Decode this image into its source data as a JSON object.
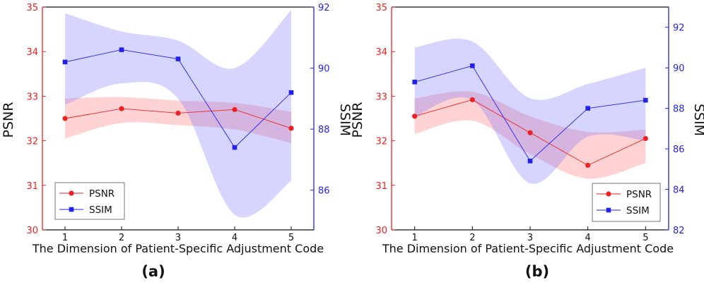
{
  "chart_data": [
    {
      "type": "line",
      "panel_label": "(a)",
      "xlabel": "The Dimension of Patient-Specific Adjustment Code",
      "ylabel_left": "PSNR",
      "ylabel_right": "SSIM",
      "x": [
        1,
        2,
        3,
        4,
        5
      ],
      "xticks": [
        "1",
        "2",
        "3",
        "4",
        "5"
      ],
      "xlim": [
        0.6,
        5.4
      ],
      "ylim_left": [
        30,
        35
      ],
      "yticks_left": [
        "30",
        "31",
        "32",
        "33",
        "34",
        "35"
      ],
      "ylim_right": [
        84.7,
        92
      ],
      "yticks_right": [
        "86",
        "88",
        "90",
        "92"
      ],
      "series": [
        {
          "name": "PSNR",
          "axis": "left",
          "color": "#ff0000",
          "marker": "circle",
          "values": [
            32.5,
            32.72,
            32.62,
            32.7,
            32.28
          ],
          "band_upper": [
            32.95,
            32.98,
            32.9,
            32.85,
            32.65
          ],
          "band_lower": [
            32.05,
            32.4,
            32.35,
            32.25,
            31.95
          ]
        },
        {
          "name": "SSIM",
          "axis": "right",
          "color": "#2222ff",
          "marker": "square",
          "values": [
            90.2,
            90.6,
            90.3,
            87.4,
            89.2
          ],
          "band_upper": [
            91.8,
            91.2,
            90.9,
            90.0,
            91.9
          ],
          "band_lower": [
            88.8,
            89.5,
            89.0,
            85.2,
            86.3
          ]
        }
      ],
      "legend": [
        "PSNR",
        "SSIM"
      ],
      "legend_position": "bottom-left"
    },
    {
      "type": "line",
      "panel_label": "(b)",
      "xlabel": "The Dimension of Patient-Specific Adjustment Code",
      "ylabel_left": "PSNR",
      "ylabel_right": "SSIM",
      "x": [
        1,
        2,
        3,
        4,
        5
      ],
      "xticks": [
        "1",
        "2",
        "3",
        "4",
        "5"
      ],
      "xlim": [
        0.6,
        5.4
      ],
      "ylim_left": [
        30,
        35
      ],
      "yticks_left": [
        "30",
        "31",
        "32",
        "33",
        "34",
        "35"
      ],
      "ylim_right": [
        82,
        93
      ],
      "yticks_right": [
        "82",
        "84",
        "86",
        "88",
        "90",
        "92"
      ],
      "series": [
        {
          "name": "PSNR",
          "axis": "left",
          "color": "#ff0000",
          "marker": "circle",
          "values": [
            32.55,
            32.92,
            32.18,
            31.45,
            32.05
          ],
          "band_upper": [
            32.95,
            33.1,
            32.55,
            32.2,
            32.25
          ],
          "band_lower": [
            32.15,
            32.45,
            31.7,
            31.15,
            31.5
          ]
        },
        {
          "name": "SSIM",
          "axis": "right",
          "color": "#2222ff",
          "marker": "square",
          "values": [
            89.3,
            90.1,
            85.4,
            88.0,
            88.4
          ],
          "band_upper": [
            91.0,
            91.3,
            88.5,
            89.2,
            90.0
          ],
          "band_lower": [
            87.6,
            88.4,
            84.3,
            86.6,
            86.4
          ]
        }
      ],
      "legend": [
        "PSNR",
        "SSIM"
      ],
      "legend_position": "bottom-right"
    }
  ]
}
